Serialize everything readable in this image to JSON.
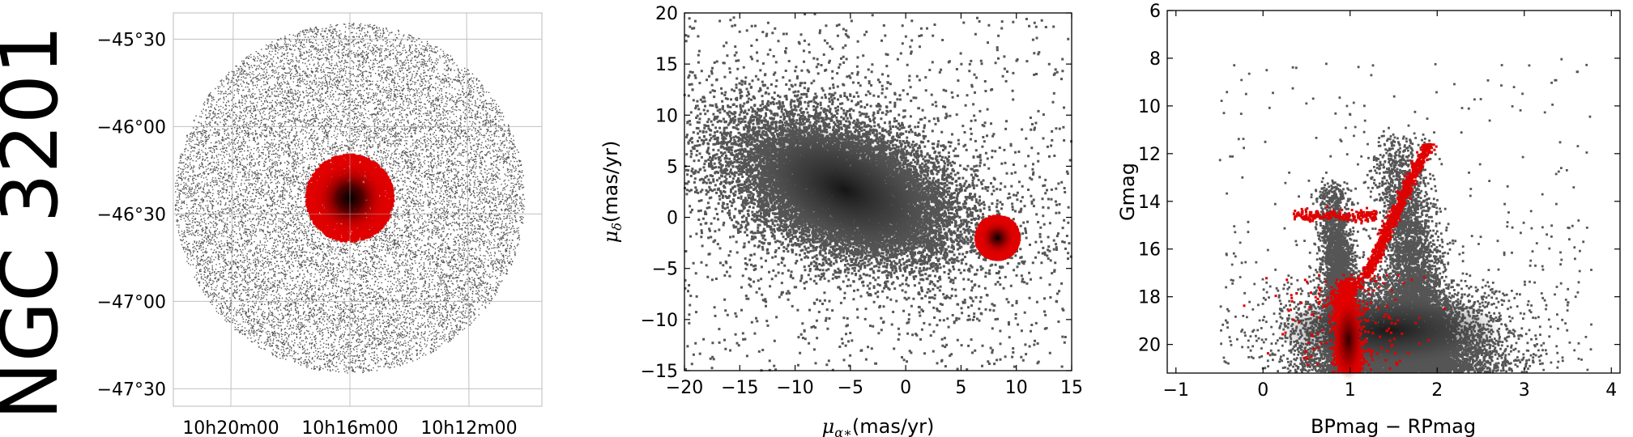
{
  "page_title": "NGC 3201",
  "chart_data": [
    {
      "id": "sky",
      "type": "scatter",
      "title": "",
      "xlabel": "",
      "ylabel": "",
      "x_tick_labels": [
        "10h20m00",
        "10h16m00",
        "10h12m00"
      ],
      "y_tick_labels": [
        "−45°30",
        "−46°00",
        "−46°30",
        "−47°00",
        "−47°30"
      ],
      "ylim_deg": [
        -47.6,
        -45.35
      ],
      "center_deg": [
        -46.41,
        -46.41
      ],
      "field_radius_deg": 1.0,
      "cluster_radius_deg": 0.25,
      "series": [
        {
          "color": "#555555"
        },
        {
          "color": "#e00000"
        }
      ],
      "grid": true
    },
    {
      "id": "proper_motion",
      "type": "scatter",
      "title": "",
      "xlabel": "μα∗(mas/yr)",
      "ylabel": "μδ(mas/yr)",
      "xlim": [
        -20,
        15
      ],
      "ylim": [
        -15,
        20
      ],
      "x_ticks": [
        -20,
        -15,
        -10,
        -5,
        0,
        5,
        10,
        15
      ],
      "y_ticks": [
        -15,
        -10,
        -5,
        0,
        5,
        10,
        15,
        20
      ],
      "field_center": [
        -5.5,
        2.7
      ],
      "cluster_center": [
        8.3,
        -2.0
      ],
      "cluster_radius": 2.0,
      "series": [
        {
          "color": "#555555"
        },
        {
          "color": "#e00000"
        }
      ],
      "grid": false
    },
    {
      "id": "cmd",
      "type": "scatter",
      "title": "",
      "xlabel": "BPmag − RPmag",
      "ylabel": "Gmag",
      "xlim": [
        -1.1,
        4.1
      ],
      "ylim": [
        21.2,
        6
      ],
      "x_ticks": [
        -1,
        0,
        1,
        2,
        3,
        4
      ],
      "y_ticks": [
        6,
        8,
        10,
        12,
        14,
        16,
        18,
        20
      ],
      "y_inverted": true,
      "series": [
        {
          "color": "#555555"
        },
        {
          "color": "#e00000"
        }
      ],
      "grid": false
    }
  ]
}
